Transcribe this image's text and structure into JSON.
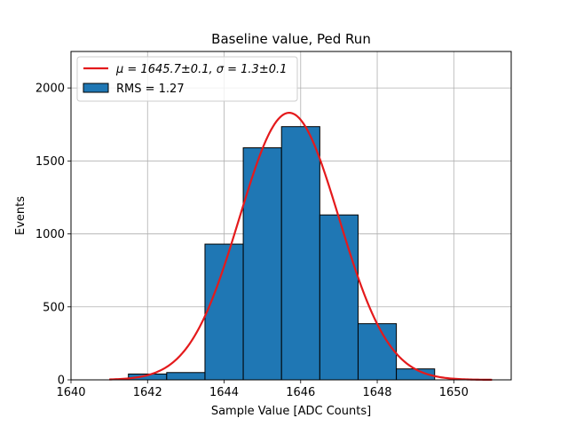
{
  "chart_data": {
    "type": "bar",
    "title": "Baseline value, Ped Run",
    "xlabel": "Sample Value [ADC Counts]",
    "ylabel": "Events",
    "xlim": [
      1640,
      1651.5
    ],
    "ylim": [
      0,
      2250
    ],
    "x_ticks": [
      1640,
      1642,
      1644,
      1646,
      1648,
      1650
    ],
    "y_ticks": [
      0,
      500,
      1000,
      1500,
      2000
    ],
    "grid": true,
    "legend_position": "top-left",
    "bins": [
      {
        "left": 1641.5,
        "right": 1642.5,
        "count": 40
      },
      {
        "left": 1642.5,
        "right": 1643.5,
        "count": 50
      },
      {
        "left": 1643.5,
        "right": 1644.5,
        "count": 930
      },
      {
        "left": 1644.5,
        "right": 1645.5,
        "count": 1590
      },
      {
        "left": 1645.5,
        "right": 1646.5,
        "count": 1735
      },
      {
        "left": 1646.5,
        "right": 1647.5,
        "count": 1130
      },
      {
        "left": 1647.5,
        "right": 1648.5,
        "count": 385
      },
      {
        "left": 1648.5,
        "right": 1649.5,
        "count": 75
      }
    ],
    "histogram_label": "RMS = 1.27",
    "histogram_color": "#1f77b4",
    "fit": {
      "type": "gaussian",
      "label_mu_text": "μ = 1645.7±0.1, ",
      "label_sigma_text": "σ = 1.3±0.1",
      "mu": 1645.7,
      "sigma": 1.3,
      "amplitude": 1830,
      "x_range": [
        1641,
        1651
      ],
      "color": "#e41a1c"
    }
  }
}
